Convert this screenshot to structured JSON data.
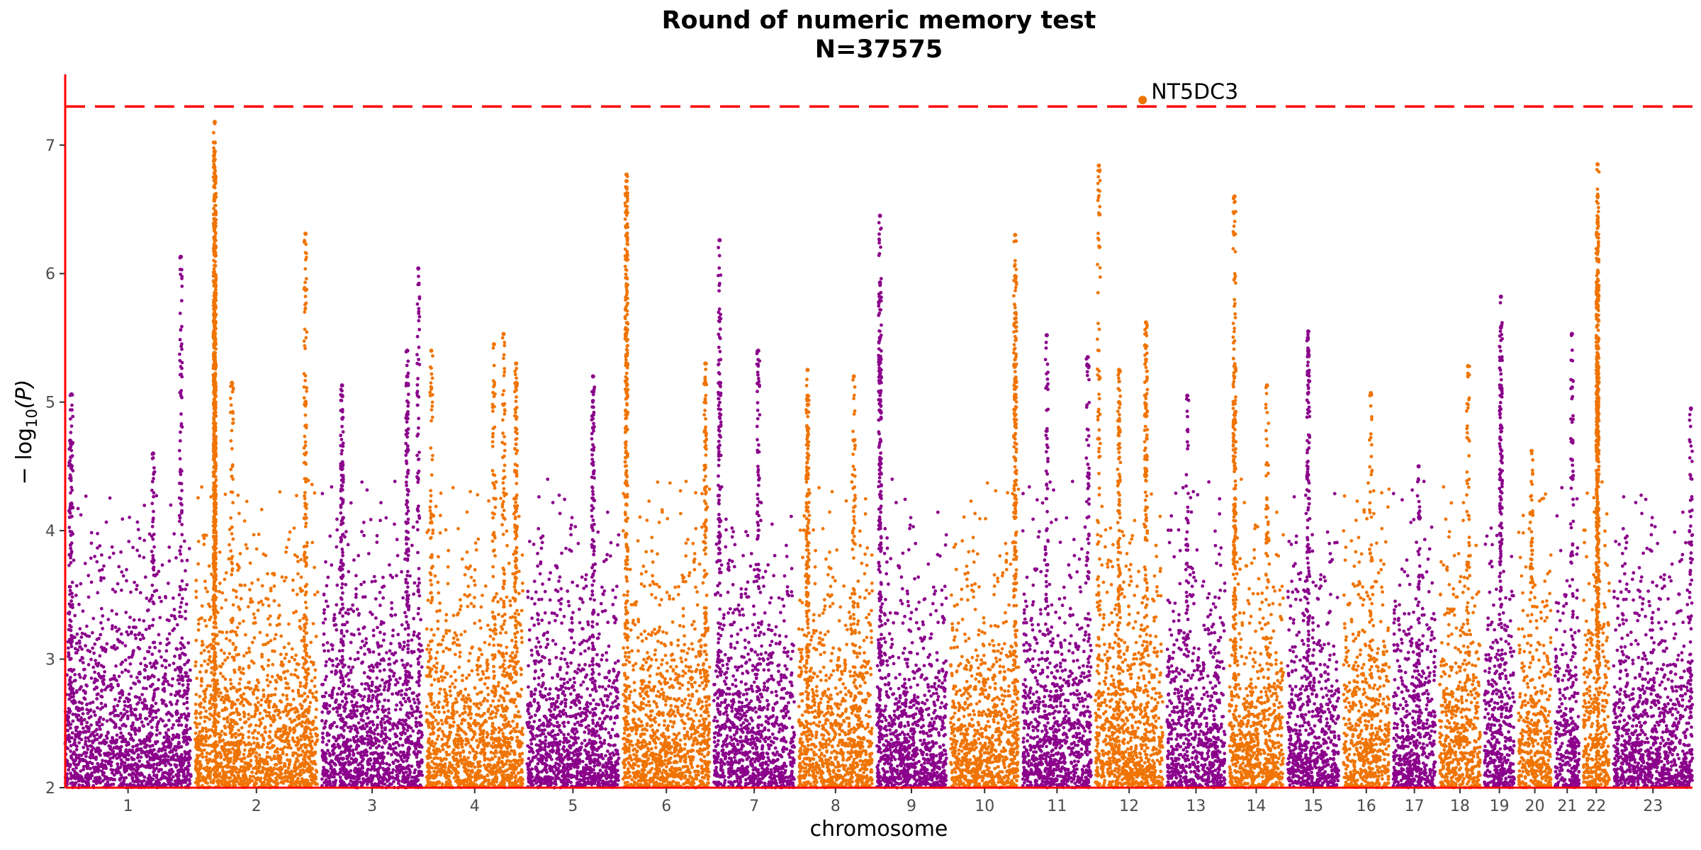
{
  "chart_data": {
    "type": "scatter",
    "title": "Round of numeric memory test",
    "subtitle": "N=37575",
    "xlabel": "chromosome",
    "ylabel_main": "− log",
    "ylabel_sub": "10",
    "ylabel_tail": "(P)",
    "ylim": [
      2,
      7.55
    ],
    "yticks": [
      "2",
      "3",
      "4",
      "5",
      "6",
      "7"
    ],
    "threshold": 7.3,
    "colors": {
      "odd": "#8b008b",
      "even": "#ef7404",
      "threshold": "#ff0000",
      "axis": "#ff0000"
    },
    "chromosomes": [
      {
        "label": "1",
        "length": 248,
        "peaks": [
          [
            0.92,
            6.13
          ],
          [
            0.05,
            5.06
          ],
          [
            0.04,
            4.7
          ],
          [
            0.7,
            4.6
          ]
        ]
      },
      {
        "label": "2",
        "length": 242,
        "peaks": [
          [
            0.16,
            7.18
          ],
          [
            0.16,
            7.02
          ],
          [
            0.16,
            6.95
          ],
          [
            0.16,
            6.6
          ],
          [
            0.16,
            6.4
          ],
          [
            0.16,
            6.2
          ],
          [
            0.16,
            5.85
          ],
          [
            0.16,
            5.5
          ],
          [
            0.16,
            5.2
          ],
          [
            0.3,
            5.15
          ],
          [
            0.9,
            6.31
          ],
          [
            0.9,
            5.0
          ]
        ]
      },
      {
        "label": "3",
        "length": 198,
        "peaks": [
          [
            0.96,
            6.04
          ],
          [
            0.85,
            5.4
          ],
          [
            0.85,
            5.2
          ],
          [
            0.2,
            5.13
          ],
          [
            0.2,
            5.05
          ]
        ]
      },
      {
        "label": "4",
        "length": 190,
        "peaks": [
          [
            0.05,
            5.4
          ],
          [
            0.7,
            5.45
          ],
          [
            0.8,
            5.53
          ],
          [
            0.93,
            5.3
          ],
          [
            0.93,
            5.15
          ]
        ]
      },
      {
        "label": "5",
        "length": 181,
        "peaks": [
          [
            0.72,
            5.2
          ],
          [
            0.72,
            4.8
          ]
        ]
      },
      {
        "label": "6",
        "length": 171,
        "peaks": [
          [
            0.04,
            6.77
          ],
          [
            0.04,
            6.72
          ],
          [
            0.04,
            6.67
          ],
          [
            0.95,
            5.3
          ],
          [
            0.95,
            5.15
          ]
        ]
      },
      {
        "label": "7",
        "length": 159,
        "peaks": [
          [
            0.07,
            6.26
          ],
          [
            0.55,
            5.4
          ],
          [
            0.07,
            5.15
          ]
        ]
      },
      {
        "label": "8",
        "length": 145,
        "peaks": [
          [
            0.12,
            5.25
          ],
          [
            0.12,
            5.05
          ],
          [
            0.12,
            4.8
          ],
          [
            0.75,
            5.2
          ]
        ]
      },
      {
        "label": "9",
        "length": 138,
        "peaks": [
          [
            0.05,
            6.45
          ],
          [
            0.05,
            5.93
          ],
          [
            0.05,
            5.5
          ]
        ]
      },
      {
        "label": "10",
        "length": 134,
        "peaks": [
          [
            0.95,
            6.3
          ],
          [
            0.95,
            5.98
          ],
          [
            0.95,
            5.65
          ]
        ]
      },
      {
        "label": "11",
        "length": 135,
        "peaks": [
          [
            0.35,
            5.52
          ],
          [
            0.95,
            5.35
          ]
        ]
      },
      {
        "label": "12",
        "length": 133,
        "peaks": [
          [
            0.05,
            6.84
          ],
          [
            0.35,
            5.25
          ],
          [
            0.35,
            5.0
          ],
          [
            0.75,
            5.62
          ],
          [
            0.75,
            5.33
          ]
        ]
      },
      {
        "label": "13",
        "length": 114,
        "peaks": [
          [
            0.35,
            5.05
          ]
        ]
      },
      {
        "label": "14",
        "length": 107,
        "peaks": [
          [
            0.1,
            6.6
          ],
          [
            0.1,
            5.28
          ],
          [
            0.1,
            4.9
          ],
          [
            0.7,
            5.13
          ]
        ]
      },
      {
        "label": "15",
        "length": 102,
        "peaks": [
          [
            0.4,
            5.55
          ],
          [
            0.4,
            5.4
          ]
        ]
      },
      {
        "label": "16",
        "length": 90,
        "peaks": [
          [
            0.6,
            5.07
          ]
        ]
      },
      {
        "label": "17",
        "length": 83,
        "peaks": [
          [
            0.6,
            4.5
          ]
        ]
      },
      {
        "label": "18",
        "length": 80,
        "peaks": [
          [
            0.7,
            5.28
          ]
        ]
      },
      {
        "label": "19",
        "length": 59,
        "peaks": [
          [
            0.55,
            5.82
          ],
          [
            0.55,
            5.58
          ]
        ]
      },
      {
        "label": "20",
        "length": 64,
        "peaks": [
          [
            0.4,
            4.62
          ]
        ]
      },
      {
        "label": "21",
        "length": 47,
        "peaks": [
          [
            0.7,
            5.53
          ]
        ]
      },
      {
        "label": "22",
        "length": 51,
        "peaks": [
          [
            0.55,
            6.85
          ],
          [
            0.55,
            6.6
          ],
          [
            0.55,
            6.4
          ],
          [
            0.55,
            6.1
          ],
          [
            0.55,
            5.8
          ],
          [
            0.55,
            5.5
          ],
          [
            0.55,
            5.2
          ]
        ]
      },
      {
        "label": "23",
        "length": 156,
        "peaks": [
          [
            0.98,
            4.95
          ]
        ]
      }
    ],
    "annotation": {
      "label": "NT5DC3",
      "chromosome": "12",
      "position": 0.7,
      "y": 7.35
    }
  }
}
